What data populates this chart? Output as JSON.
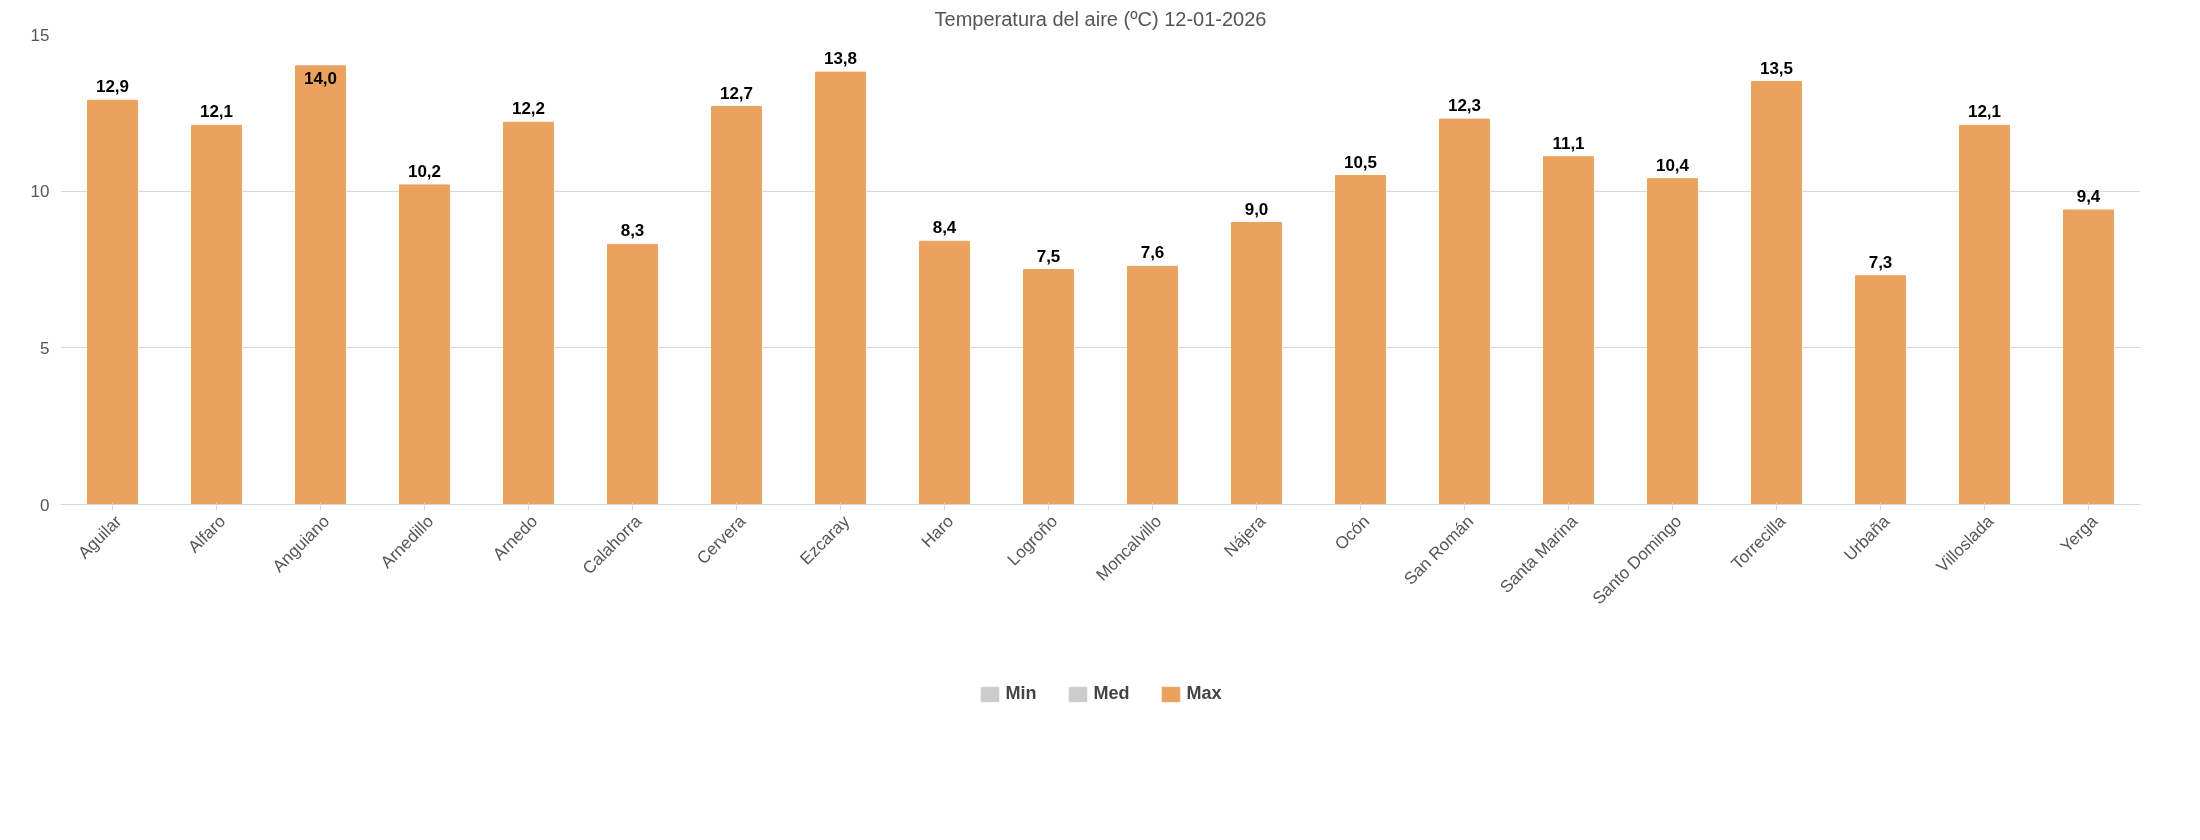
{
  "chart_data": {
    "type": "bar",
    "title": "Temperatura del aire (ºC) 12-01-2026",
    "categories": [
      "Aguilar",
      "Alfaro",
      "Anguiano",
      "Arnedillo",
      "Arnedo",
      "Calahorra",
      "Cervera",
      "Ezcaray",
      "Haro",
      "Logroño",
      "Moncalvillo",
      "Nájera",
      "Ocón",
      "San Román",
      "Santa Marina",
      "Santo Domingo",
      "Torrecilla",
      "Urbaña",
      "Villoslada",
      "Yerga"
    ],
    "series": [
      {
        "name": "Min",
        "color": "#cccccc",
        "values": [
          null,
          null,
          null,
          null,
          null,
          null,
          null,
          null,
          null,
          null,
          null,
          null,
          null,
          null,
          null,
          null,
          null,
          null,
          null,
          null
        ]
      },
      {
        "name": "Med",
        "color": "#cccccc",
        "values": [
          null,
          null,
          null,
          null,
          null,
          null,
          null,
          null,
          null,
          null,
          null,
          null,
          null,
          null,
          null,
          null,
          null,
          null,
          null,
          null
        ]
      },
      {
        "name": "Max",
        "color": "#eba25e",
        "values": [
          12.9,
          12.1,
          14.0,
          10.2,
          12.2,
          8.3,
          12.7,
          13.8,
          8.4,
          7.5,
          7.6,
          9.0,
          10.5,
          12.3,
          11.1,
          10.4,
          13.5,
          7.3,
          12.1,
          9.4
        ],
        "value_labels": [
          "12,9",
          "12,1",
          "14,0",
          "10,2",
          "12,2",
          "8,3",
          "12,7",
          "13,8",
          "8,4",
          "7,5",
          "7,6",
          "9,0",
          "10,5",
          "12,3",
          "11,1",
          "10,4",
          "13,5",
          "7,3",
          "12,1",
          "9,4"
        ]
      }
    ],
    "ylim": [
      0,
      15
    ],
    "yticks": [
      0,
      5,
      10,
      15
    ],
    "grid": "y",
    "legend": "bottom"
  }
}
